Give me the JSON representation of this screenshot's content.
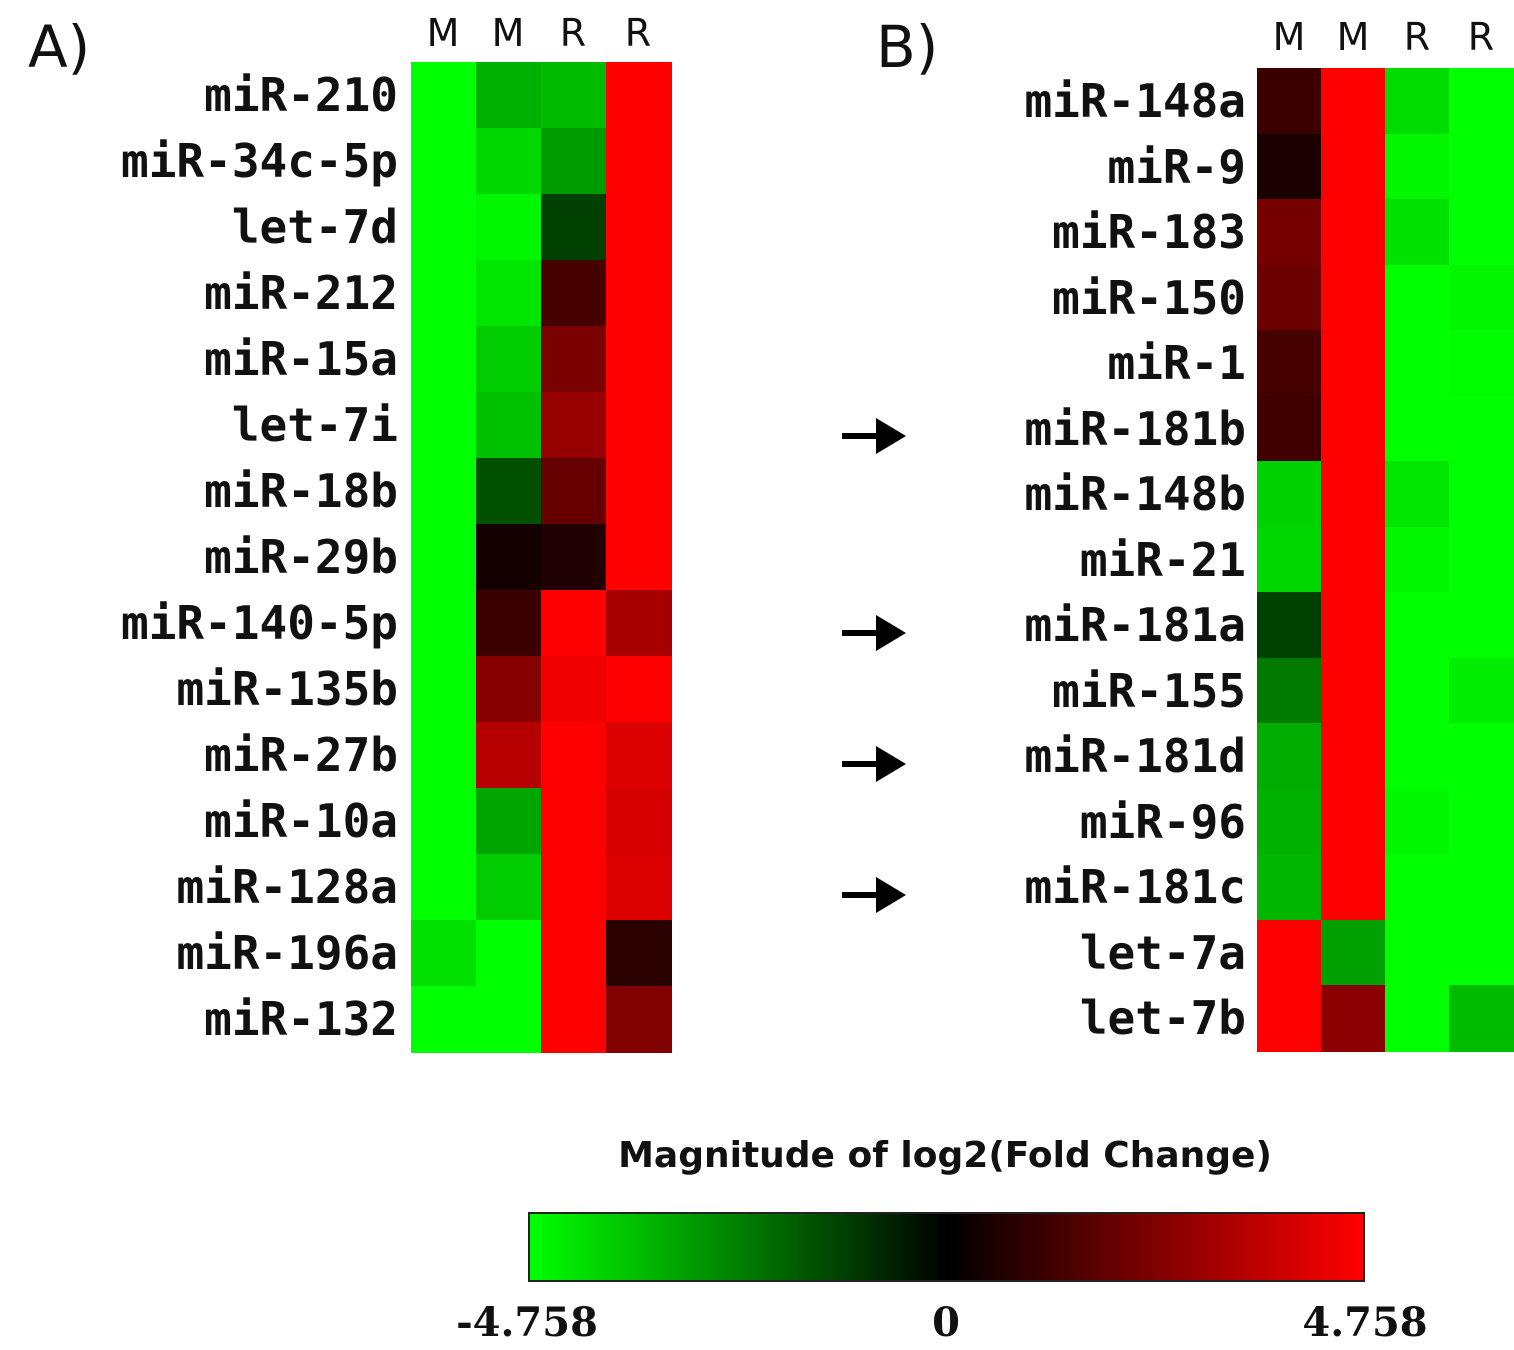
{
  "chart_data": [
    {
      "type": "heatmap",
      "panel": "A)",
      "columns": [
        "M",
        "M",
        "R",
        "R"
      ],
      "rows": [
        "miR-210",
        "miR-34c-5p",
        "let-7d",
        "miR-212",
        "miR-15a",
        "let-7i",
        "miR-18b",
        "miR-29b",
        "miR-140-5p",
        "miR-135b",
        "miR-27b",
        "miR-10a",
        "miR-128a",
        "miR-196a",
        "miR-132"
      ],
      "values": [
        [
          -4.758,
          -3.3,
          -3.5,
          4.758
        ],
        [
          -4.758,
          -4.0,
          -2.9,
          4.758
        ],
        [
          -4.758,
          -4.6,
          -1.2,
          4.758
        ],
        [
          -4.758,
          -4.3,
          1.3,
          4.758
        ],
        [
          -4.758,
          -3.8,
          2.3,
          4.758
        ],
        [
          -4.758,
          -3.6,
          2.8,
          4.758
        ],
        [
          -4.758,
          -1.5,
          1.9,
          4.758
        ],
        [
          -4.758,
          0.4,
          0.6,
          4.758
        ],
        [
          -4.758,
          1.1,
          4.758,
          3.1
        ],
        [
          -4.758,
          2.5,
          4.5,
          4.758
        ],
        [
          -4.758,
          3.4,
          4.758,
          4.1
        ],
        [
          -4.758,
          -3.1,
          4.758,
          4.0
        ],
        [
          -4.758,
          -3.8,
          4.758,
          4.1
        ],
        [
          -4.2,
          -4.758,
          4.758,
          0.8
        ],
        [
          -4.758,
          -4.758,
          4.758,
          2.4
        ]
      ]
    },
    {
      "type": "heatmap",
      "panel": "B)",
      "columns": [
        "M",
        "M",
        "R",
        "R"
      ],
      "rows": [
        "miR-148a",
        "miR-9",
        "miR-183",
        "miR-150",
        "miR-1",
        "miR-181b",
        "miR-148b",
        "miR-21",
        "miR-181a",
        "miR-155",
        "miR-181d",
        "miR-96",
        "miR-181c",
        "let-7a",
        "let-7b"
      ],
      "values": [
        [
          1.1,
          4.758,
          -4.1,
          -4.758
        ],
        [
          0.5,
          4.758,
          -4.6,
          -4.758
        ],
        [
          2.2,
          4.758,
          -4.2,
          -4.758
        ],
        [
          2.0,
          4.758,
          -4.758,
          -4.6
        ],
        [
          1.3,
          4.758,
          -4.758,
          -4.7
        ],
        [
          1.2,
          4.758,
          -4.758,
          -4.758
        ],
        [
          -3.9,
          4.758,
          -4.3,
          -4.758
        ],
        [
          -4.0,
          4.758,
          -4.6,
          -4.758
        ],
        [
          -1.2,
          4.758,
          -4.758,
          -4.758
        ],
        [
          -2.3,
          4.758,
          -4.758,
          -4.4
        ],
        [
          -3.2,
          4.758,
          -4.758,
          -4.758
        ],
        [
          -3.3,
          4.758,
          -4.6,
          -4.758
        ],
        [
          -3.4,
          4.758,
          -4.758,
          -4.758
        ],
        [
          4.758,
          -3.0,
          -4.758,
          -4.758
        ],
        [
          4.758,
          2.6,
          -4.758,
          -3.5
        ]
      ],
      "arrows": [
        "miR-181b",
        "miR-181a",
        "miR-181d",
        "miR-181c"
      ]
    }
  ],
  "legend": {
    "title": "Magnitude of log2(Fold Change)",
    "min_label": "-4.758",
    "mid_label": "0",
    "max_label": "4.758",
    "min": -4.758,
    "max": 4.758,
    "colors": {
      "low": "#00ff00",
      "mid": "#000000",
      "high": "#ff0000"
    }
  }
}
